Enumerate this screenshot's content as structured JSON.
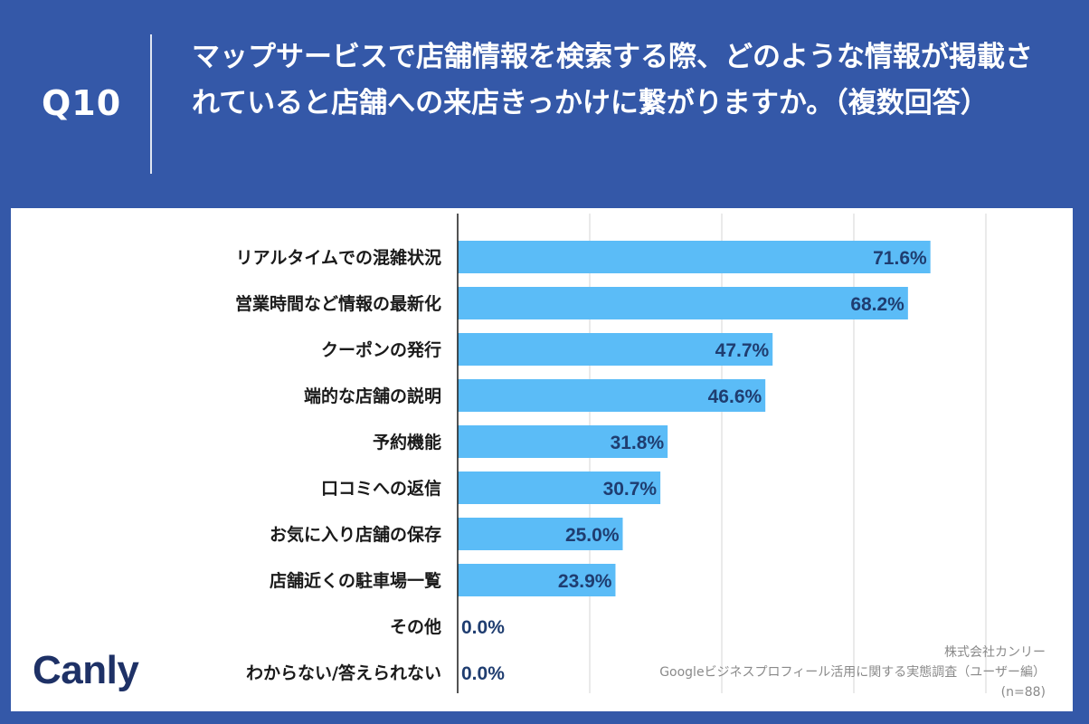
{
  "header": {
    "question_label": "Q10",
    "question_text": "マップサービスで店舗情報を検索する際、どのような情報が掲載されていると店舗への来店きっかけに繋がりますか。（複数回答）"
  },
  "brand": {
    "logo_text": "Canl",
    "logo_accent": "y"
  },
  "credit": {
    "company": "株式会社カンリー",
    "survey": "Googleビジネスプロフィール活用に関する実態調査（ユーザー編）",
    "sample": "(n=88)"
  },
  "colors": {
    "background": "#3458a8",
    "bar": "#5bbcf7",
    "value_text": "#1f3d70",
    "grid": "#d6d6d6",
    "axis": "#1a1a1a"
  },
  "chart_data": {
    "type": "bar",
    "orientation": "horizontal",
    "categories": [
      "リアルタイムでの混雑状況",
      "営業時間など情報の最新化",
      "クーポンの発行",
      "端的な店舗の説明",
      "予約機能",
      "口コミへの返信",
      "お気に入り店舗の保存",
      "店舗近くの駐車場一覧",
      "その他",
      "わからない/答えられない"
    ],
    "values": [
      71.6,
      68.2,
      47.7,
      46.6,
      31.8,
      30.7,
      25.0,
      23.9,
      0.0,
      0.0
    ],
    "value_labels": [
      "71.6%",
      "68.2%",
      "47.7%",
      "46.6%",
      "31.8%",
      "30.7%",
      "25.0%",
      "23.9%",
      "0.0%",
      "0.0%"
    ],
    "xlim": [
      0,
      80
    ],
    "grid_step": 20,
    "title": "",
    "xlabel": "",
    "ylabel": ""
  }
}
